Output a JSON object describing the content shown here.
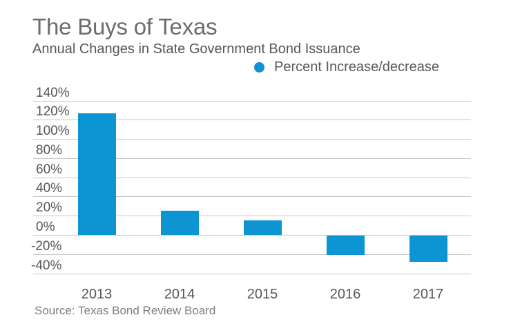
{
  "chart_data": {
    "type": "bar",
    "title": "The Buys of Texas",
    "subtitle": "Annual Changes in State Government Bond Issuance",
    "legend": {
      "label": "Percent Increase/decrease",
      "position": "top-right"
    },
    "categories": [
      "2013",
      "2014",
      "2015",
      "2016",
      "2017"
    ],
    "series": [
      {
        "name": "Percent Increase/decrease",
        "values": [
          127,
          25,
          15,
          -20,
          -27
        ]
      }
    ],
    "yticks": [
      140,
      120,
      100,
      80,
      60,
      40,
      20,
      0,
      -20,
      -40
    ],
    "ytick_labels": [
      "140%",
      "120%",
      "100%",
      "80%",
      "60%",
      "40%",
      "20%",
      "0%",
      "-20%",
      "-40%"
    ],
    "ylim": [
      -40,
      140
    ],
    "grid": true,
    "colors": {
      "bar": "#0d95d3",
      "gridline": "#c6c6c6",
      "title_text": "#6b6c6e",
      "subtitle_text": "#55565a",
      "axis_text": "#55565a",
      "source_text": "#7d7e80"
    },
    "source": "Source: Texas Bond Review Board"
  }
}
